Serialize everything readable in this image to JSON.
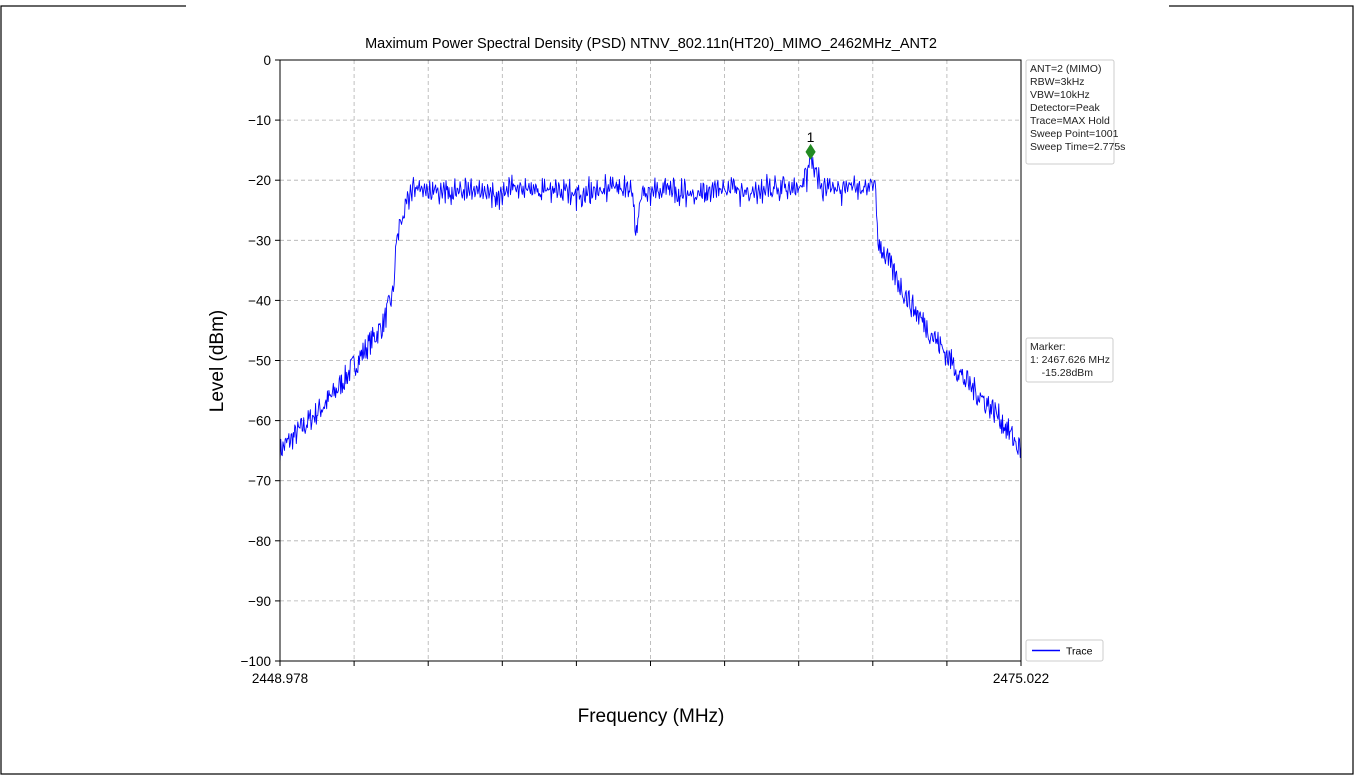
{
  "chart_data": {
    "type": "line",
    "title": "Maximum Power Spectral Density (PSD) NTNV_802.11n(HT20)_MIMO_2462MHz_ANT2",
    "xlabel": "Frequency (MHz)",
    "ylabel": "Level (dBm)",
    "xlim": [
      2448.978,
      2475.022
    ],
    "ylim": [
      -100,
      0
    ],
    "x_tick_labels": [
      "2448.978",
      "2475.022"
    ],
    "y_ticks": [
      0,
      -10,
      -20,
      -30,
      -40,
      -50,
      -60,
      -70,
      -80,
      -90,
      -100
    ],
    "y_tick_labels": [
      "0",
      "−10",
      "−20",
      "−30",
      "−40",
      "−50",
      "−60",
      "−70",
      "−80",
      "−90",
      "−100"
    ],
    "grid": true,
    "legend_position": "bottom-right outside",
    "series": [
      {
        "name": "Trace",
        "color": "#0000ff",
        "x": [
          2448.978,
          2449.6,
          2450.2,
          2450.8,
          2451.4,
          2452.0,
          2452.6,
          2452.95,
          2453.05,
          2453.1,
          2453.6,
          2454.5,
          2455.5,
          2456.5,
          2457.5,
          2458.5,
          2459.5,
          2460.5,
          2461.3,
          2461.5,
          2461.7,
          2462.5,
          2463.5,
          2464.5,
          2465.5,
          2466.5,
          2467.3,
          2467.626,
          2468.0,
          2469.0,
          2469.8,
          2469.9,
          2470.0,
          2470.6,
          2471.2,
          2471.8,
          2472.4,
          2473.0,
          2473.6,
          2474.2,
          2475.022
        ],
        "values": [
          -65,
          -62,
          -59,
          -56,
          -52,
          -48,
          -44,
          -39,
          -32,
          -28,
          -20,
          -21,
          -20,
          -21,
          -20,
          -20,
          -21,
          -20,
          -20,
          -29,
          -21,
          -20,
          -21,
          -20,
          -21,
          -20,
          -20,
          -15.28,
          -20,
          -20,
          -20,
          -22,
          -30,
          -36,
          -41,
          -45,
          -49,
          -53,
          -56,
          -59,
          -65
        ]
      }
    ],
    "marker": {
      "label": "1",
      "x": 2467.626,
      "y": -15.28,
      "color": "#228b22"
    },
    "info_box": [
      "ANT=2 (MIMO)",
      "RBW=3kHz",
      "VBW=10kHz",
      "Detector=Peak",
      "Trace=MAX Hold",
      "Sweep Point=1001",
      "Sweep Time=2.775s"
    ],
    "marker_box": [
      "Marker:",
      "1: 2467.626 MHz",
      "    -15.28dBm"
    ]
  }
}
